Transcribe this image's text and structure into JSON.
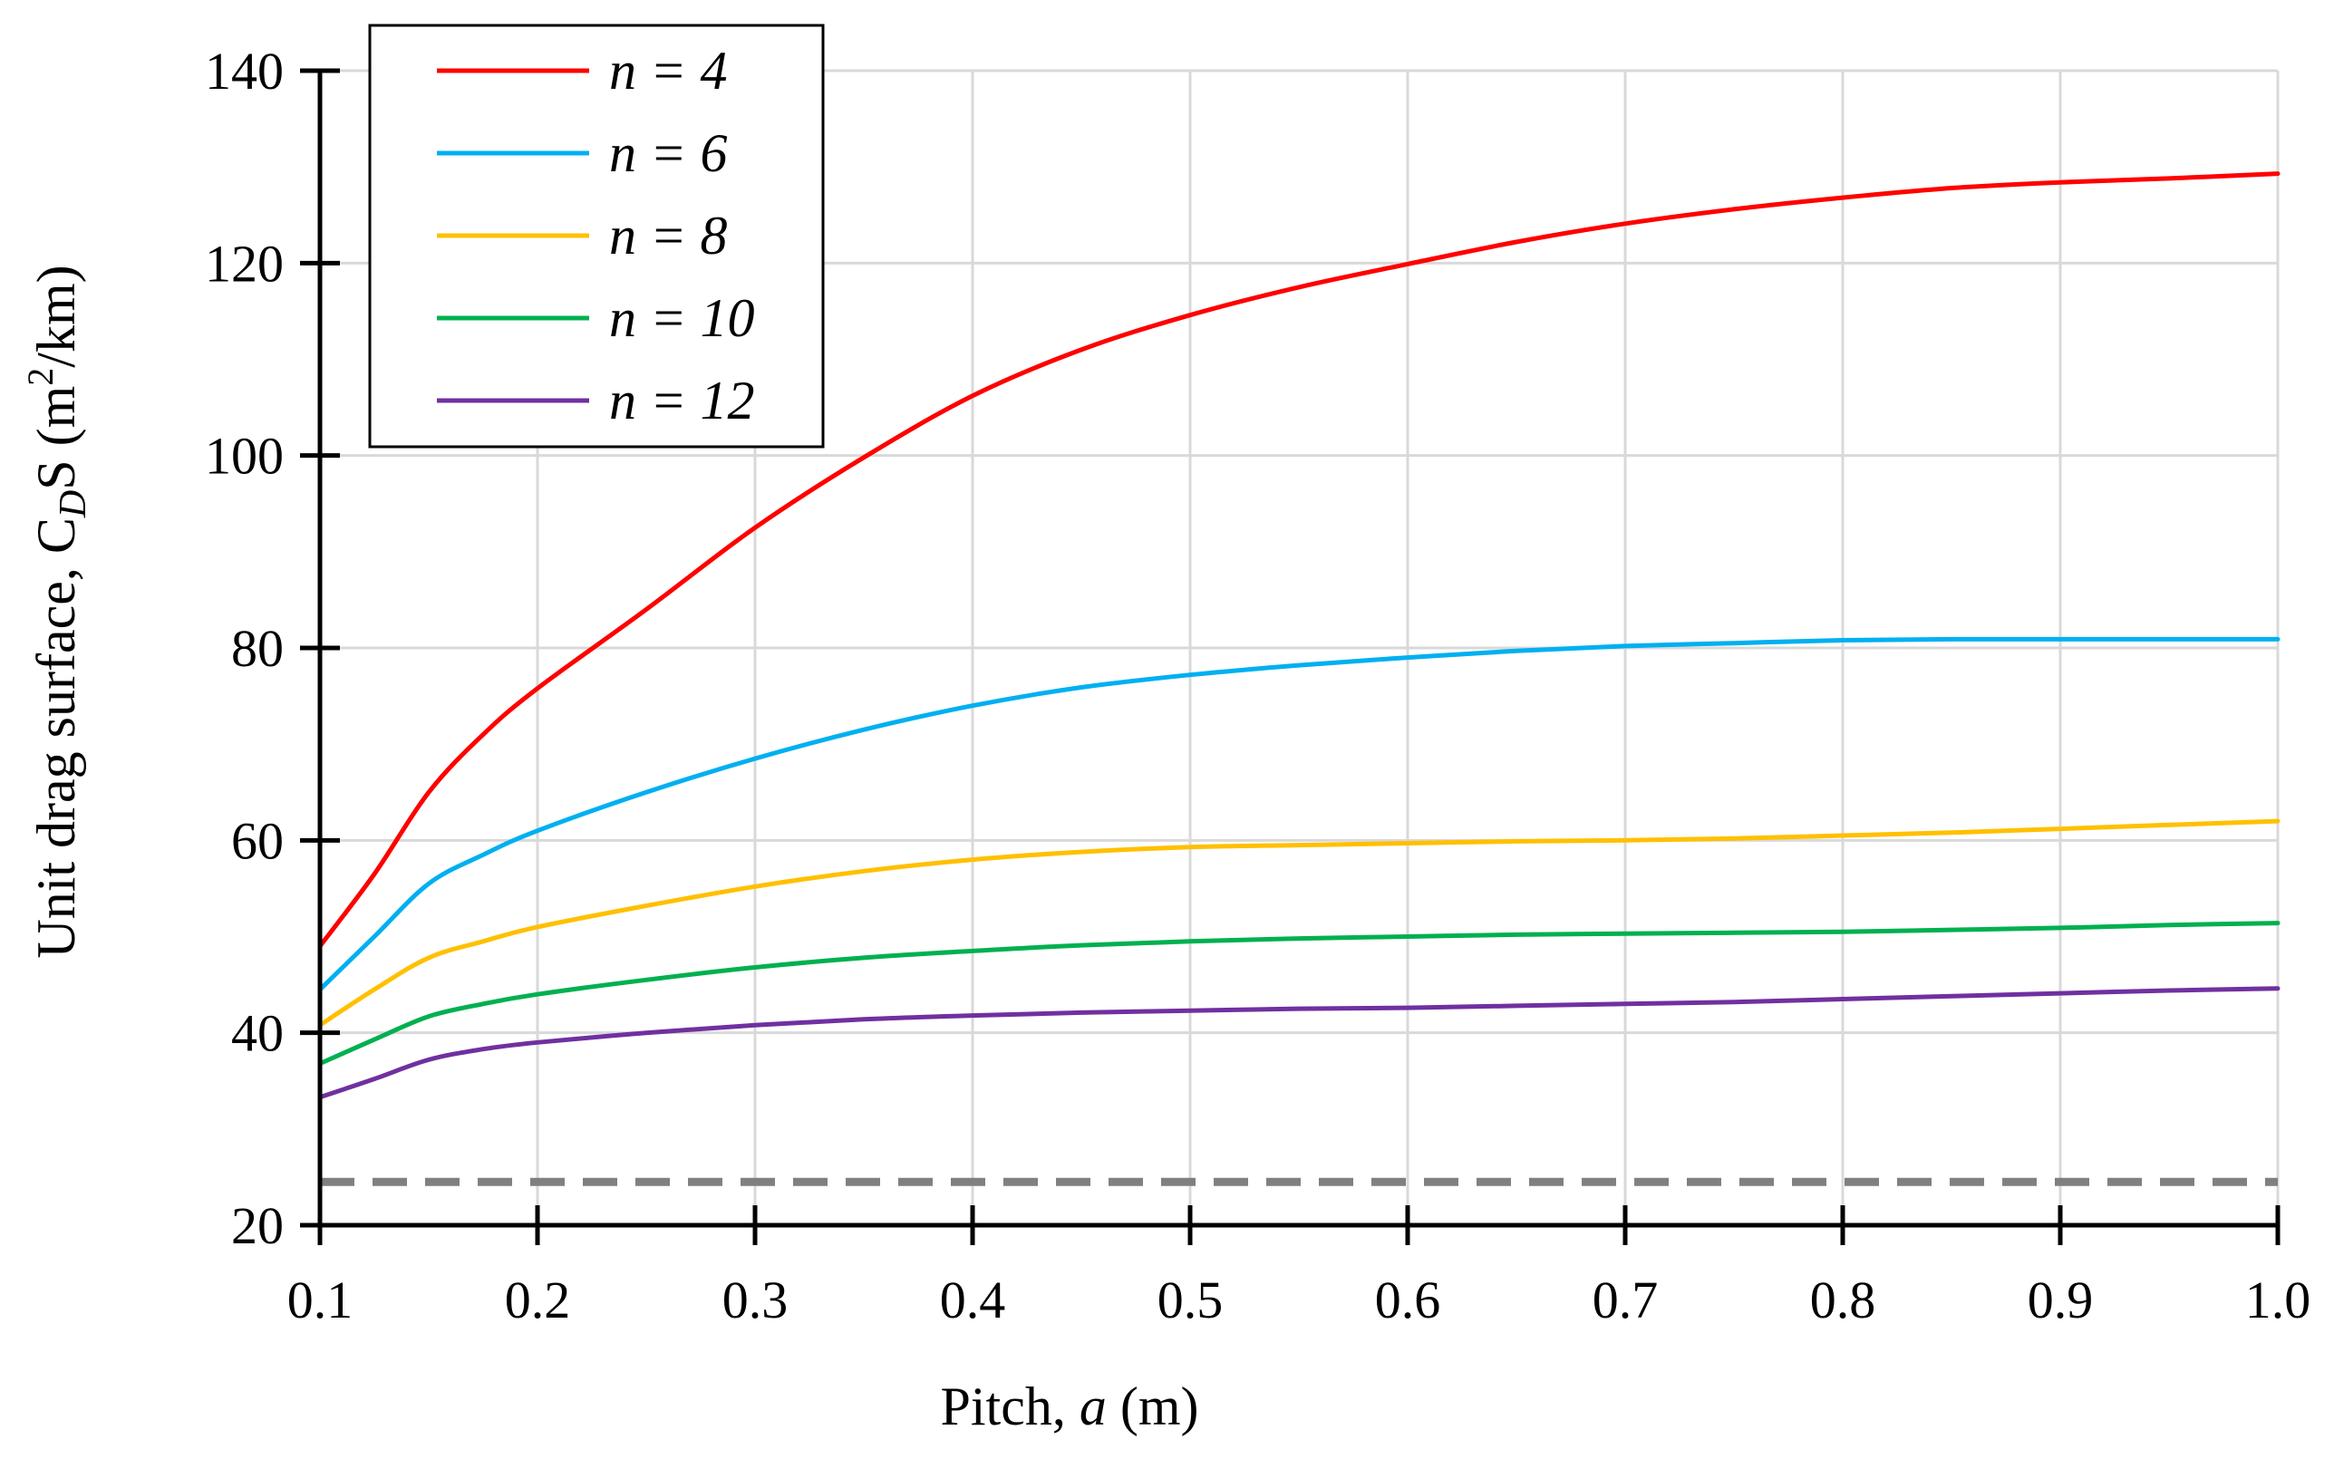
{
  "chart_data": {
    "type": "line",
    "title": "",
    "xlabel": {
      "text_before": "Pitch, ",
      "italic": "a",
      "text_after": " (m)"
    },
    "ylabel": {
      "text_before": "Unit drag surface, C",
      "subscript": "D",
      "text_middle": "S (m",
      "superscript": "2",
      "text_after": "/km)"
    },
    "xlim": [
      0.1,
      1.0
    ],
    "ylim": [
      20,
      140
    ],
    "xticks": [
      0.1,
      0.2,
      0.3,
      0.4,
      0.5,
      0.6,
      0.7,
      0.8,
      0.9,
      1.0
    ],
    "xtick_labels": [
      "0.1",
      "0.2",
      "0.3",
      "0.4",
      "0.5",
      "0.6",
      "0.7",
      "0.8",
      "0.9",
      "1.0"
    ],
    "yticks": [
      20,
      40,
      60,
      80,
      100,
      120,
      140
    ],
    "ytick_labels": [
      "20",
      "40",
      "60",
      "80",
      "100",
      "120",
      "140"
    ],
    "grid": true,
    "legend_position": "top-left",
    "x": [
      0.1,
      0.125,
      0.15,
      0.175,
      0.2,
      0.25,
      0.3,
      0.35,
      0.4,
      0.45,
      0.5,
      0.55,
      0.6,
      0.65,
      0.7,
      0.75,
      0.8,
      0.85,
      0.9,
      0.95,
      1.0
    ],
    "series": [
      {
        "name": "n = 4",
        "label_italic": "n",
        "label_rest": " = 4",
        "color": "#ff0000",
        "values": [
          49.0,
          56.5,
          65.0,
          71.0,
          75.8,
          84.0,
          92.5,
          99.8,
          106.2,
          111.0,
          114.6,
          117.5,
          119.9,
          122.2,
          124.1,
          125.6,
          126.8,
          127.8,
          128.4,
          128.8,
          129.3
        ]
      },
      {
        "name": "n = 6",
        "label_italic": "n",
        "label_rest": " = 6",
        "color": "#00b0f0",
        "values": [
          44.5,
          50.0,
          55.5,
          58.5,
          61.0,
          65.0,
          68.5,
          71.5,
          74.0,
          75.9,
          77.2,
          78.2,
          79.0,
          79.7,
          80.2,
          80.5,
          80.8,
          80.9,
          80.9,
          80.9,
          80.9
        ]
      },
      {
        "name": "n = 8",
        "label_italic": "n",
        "label_rest": " = 8",
        "color": "#ffc000",
        "values": [
          40.8,
          44.5,
          47.8,
          49.5,
          51.0,
          53.2,
          55.2,
          56.8,
          58.0,
          58.8,
          59.3,
          59.5,
          59.7,
          59.9,
          60.0,
          60.2,
          60.5,
          60.8,
          61.2,
          61.6,
          62.0
        ]
      },
      {
        "name": "n = 10",
        "label_italic": "n",
        "label_rest": " = 10",
        "color": "#00b050",
        "values": [
          36.8,
          39.3,
          41.7,
          43.0,
          44.0,
          45.5,
          46.8,
          47.8,
          48.5,
          49.1,
          49.5,
          49.8,
          50.0,
          50.2,
          50.3,
          50.4,
          50.5,
          50.7,
          50.9,
          51.2,
          51.4
        ]
      },
      {
        "name": "n = 12",
        "label_italic": "n",
        "label_rest": " = 12",
        "color": "#7030a0",
        "values": [
          33.3,
          35.2,
          37.2,
          38.3,
          39.0,
          40.0,
          40.8,
          41.4,
          41.8,
          42.1,
          42.3,
          42.5,
          42.6,
          42.8,
          43.0,
          43.2,
          43.5,
          43.8,
          44.1,
          44.4,
          44.6
        ]
      }
    ],
    "reference_line": {
      "y": 24.5,
      "color": "#808080",
      "style": "dashed"
    }
  }
}
